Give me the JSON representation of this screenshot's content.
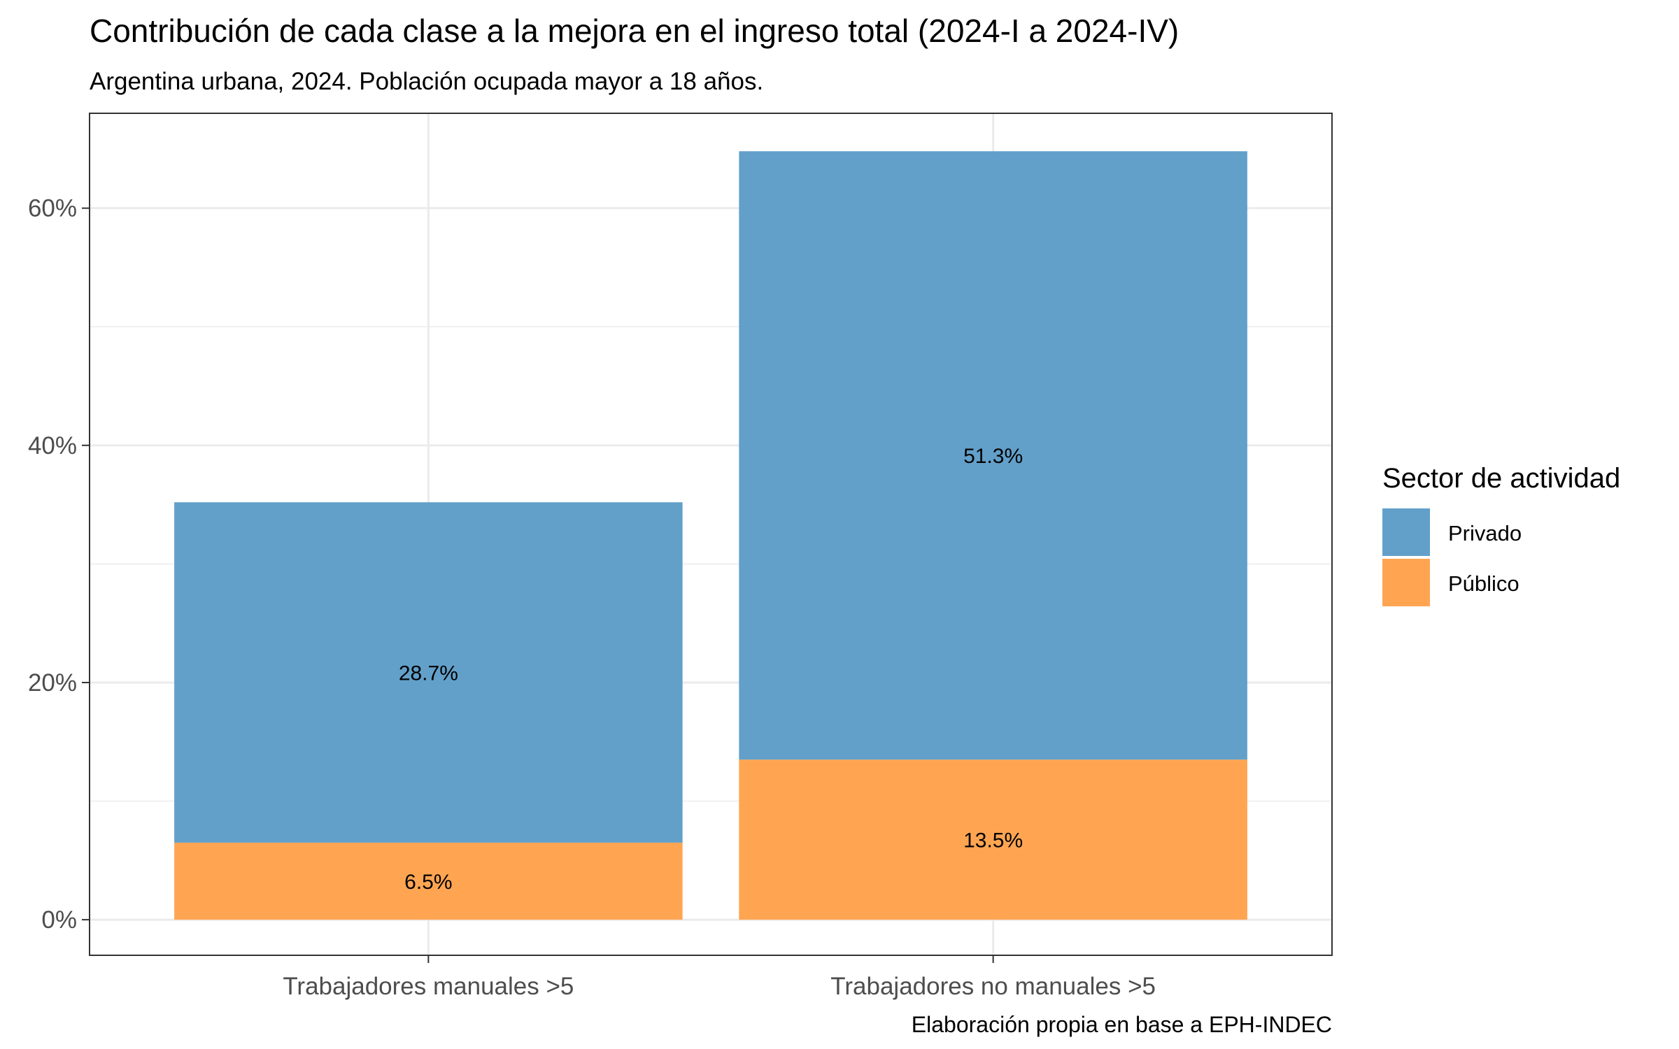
{
  "chart_data": {
    "type": "bar",
    "stacked": true,
    "title": "Contribución de cada clase a la mejora en el ingreso total (2024-I a 2024-IV)",
    "subtitle": "Argentina urbana, 2024. Población ocupada mayor a 18 años.",
    "caption": "Elaboración propia en base a EPH-INDEC",
    "xlabel": "",
    "ylabel": "",
    "categories": [
      "Trabajadores manuales >5",
      "Trabajadores no manuales >5"
    ],
    "series": [
      {
        "name": "Público",
        "color": "#FFA552",
        "values": [
          6.5,
          13.5
        ],
        "labels": [
          "6.5%",
          "13.5%"
        ]
      },
      {
        "name": "Privado",
        "color": "#62A0CA",
        "values": [
          28.7,
          51.3
        ],
        "labels": [
          "28.7%",
          "51.3%"
        ]
      }
    ],
    "ylim": [
      -3,
      68
    ],
    "yticks": [
      0,
      20,
      40,
      60
    ],
    "ytick_labels": [
      "0%",
      "20%",
      "40%",
      "60%"
    ],
    "grid": true,
    "legend": {
      "title": "Sector de actividad",
      "position": "right",
      "order": [
        "Privado",
        "Público"
      ]
    }
  }
}
